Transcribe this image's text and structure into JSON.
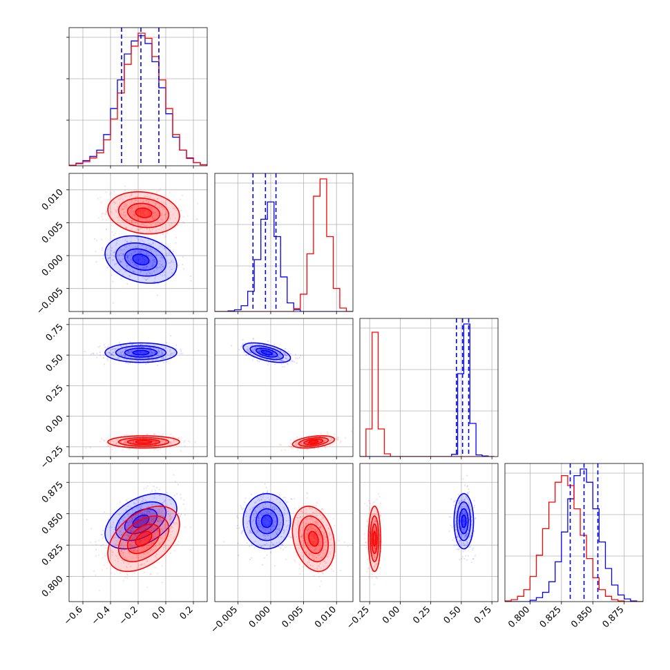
{
  "chart_data": {
    "type": "corner",
    "grid": true,
    "colors": {
      "series_a": "#0000ff",
      "series_b": "#ff0000",
      "quantile_lines": "#0000ff",
      "grid": "#b0b0b0"
    },
    "parameters": [
      {
        "range": [
          -0.7,
          0.3
        ],
        "ticks": [
          -0.6,
          -0.4,
          -0.2,
          0.0,
          0.2
        ],
        "tick_labels": [
          "−0.6",
          "−0.4",
          "−0.2",
          "0.0",
          "0.2"
        ]
      },
      {
        "range": [
          -0.0085,
          0.0125
        ],
        "ticks": [
          -0.005,
          0.0,
          0.005,
          0.01
        ],
        "tick_labels": [
          "−0.005",
          "0.000",
          "0.005",
          "0.010"
        ]
      },
      {
        "range": [
          -0.33,
          0.8
        ],
        "ticks": [
          -0.25,
          0.0,
          0.25,
          0.5,
          0.75
        ],
        "tick_labels": [
          "−0.25",
          "0.00",
          "0.25",
          "0.50",
          "0.75"
        ]
      },
      {
        "range": [
          0.78,
          0.89
        ],
        "ticks": [
          0.8,
          0.825,
          0.85,
          0.875
        ],
        "tick_labels": [
          "0.800",
          "0.825",
          "0.850",
          "0.875"
        ]
      }
    ],
    "series": [
      {
        "color": "#0000ff",
        "means": [
          -0.18,
          -0.0006,
          0.52,
          0.844
        ],
        "sigmas": [
          0.13,
          0.0018,
          0.04,
          0.011
        ],
        "correlations": [
          [
            0,
            1,
            -0.25
          ],
          [
            0,
            2,
            0.0
          ],
          [
            0,
            3,
            0.45
          ],
          [
            1,
            2,
            -0.55
          ],
          [
            1,
            3,
            0.0
          ],
          [
            2,
            3,
            0.0
          ]
        ]
      },
      {
        "color": "#ff0000",
        "means": [
          -0.16,
          0.0065,
          -0.21,
          0.83
        ],
        "sigmas": [
          0.13,
          0.0016,
          0.025,
          0.013
        ],
        "correlations": [
          [
            0,
            1,
            -0.15
          ],
          [
            0,
            2,
            0.0
          ],
          [
            0,
            3,
            0.45
          ],
          [
            1,
            2,
            0.4
          ],
          [
            1,
            3,
            -0.25
          ],
          [
            2,
            3,
            0.0
          ]
        ]
      }
    ],
    "quantiles": [
      [
        -0.32,
        -0.18,
        -0.05
      ],
      [
        -0.0027,
        -0.0008,
        0.0008
      ],
      [
        0.46,
        0.51,
        0.56
      ],
      [
        0.832,
        0.843,
        0.854
      ]
    ],
    "marginal_histograms": [
      {
        "bins": [
          -0.7,
          -0.65,
          -0.6,
          -0.55,
          -0.5,
          -0.45,
          -0.4,
          -0.35,
          -0.3,
          -0.25,
          -0.2,
          -0.15,
          -0.1,
          -0.05,
          0.0,
          0.05,
          0.1,
          0.15,
          0.2,
          0.25,
          0.3
        ],
        "series_a": [
          1,
          5,
          10,
          18,
          30,
          60,
          110,
          165,
          215,
          240,
          250,
          235,
          200,
          150,
          100,
          55,
          30,
          15,
          6,
          2
        ],
        "series_b": [
          1,
          4,
          8,
          15,
          25,
          50,
          90,
          140,
          195,
          230,
          255,
          245,
          210,
          165,
          110,
          60,
          30,
          14,
          6,
          2
        ]
      },
      {
        "bins": [
          -0.0085,
          -0.0075,
          -0.0065,
          -0.0055,
          -0.0045,
          -0.0035,
          -0.0025,
          -0.0015,
          -0.0005,
          0.0005,
          0.0015,
          0.0025,
          0.0035,
          0.0045,
          0.0055,
          0.0065,
          0.0075,
          0.0085,
          0.0095,
          0.0105,
          0.0115,
          0.0125
        ],
        "series_a": [
          0,
          0,
          1,
          3,
          10,
          35,
          90,
          160,
          190,
          130,
          60,
          15,
          3,
          0,
          0,
          0,
          0,
          0,
          0,
          0,
          0
        ],
        "series_b": [
          0,
          0,
          0,
          0,
          0,
          0,
          0,
          0,
          0,
          0,
          0,
          0,
          5,
          30,
          100,
          200,
          230,
          130,
          40,
          6,
          0
        ]
      },
      {
        "bins": [
          -0.33,
          -0.28,
          -0.23,
          -0.18,
          -0.13,
          -0.08,
          -0.03,
          0.02,
          0.07,
          0.12,
          0.17,
          0.22,
          0.27,
          0.32,
          0.37,
          0.42,
          0.47,
          0.52,
          0.57,
          0.62,
          0.67,
          0.72,
          0.77
        ],
        "series_a": [
          0,
          0,
          0,
          0,
          0,
          0,
          0,
          0,
          0,
          0,
          0,
          0,
          0,
          0,
          0,
          4,
          150,
          240,
          60,
          3,
          1,
          0
        ],
        "series_b": [
          0,
          50,
          225,
          50,
          5,
          0,
          0,
          0,
          0,
          0,
          0,
          0,
          0,
          0,
          0,
          0,
          0,
          0,
          0,
          0,
          0,
          0
        ]
      },
      {
        "bins": [
          0.78,
          0.785,
          0.79,
          0.795,
          0.8,
          0.805,
          0.81,
          0.815,
          0.82,
          0.825,
          0.83,
          0.835,
          0.84,
          0.845,
          0.85,
          0.855,
          0.86,
          0.865,
          0.87,
          0.875,
          0.88,
          0.885,
          0.89
        ],
        "series_a": [
          0,
          0,
          0,
          0,
          2,
          6,
          14,
          30,
          60,
          105,
          155,
          190,
          200,
          180,
          140,
          90,
          50,
          25,
          10,
          4,
          1,
          0
        ],
        "series_b": [
          1,
          3,
          8,
          18,
          38,
          70,
          110,
          150,
          180,
          190,
          175,
          140,
          100,
          65,
          36,
          18,
          8,
          3,
          1,
          0,
          0,
          0
        ]
      }
    ]
  }
}
